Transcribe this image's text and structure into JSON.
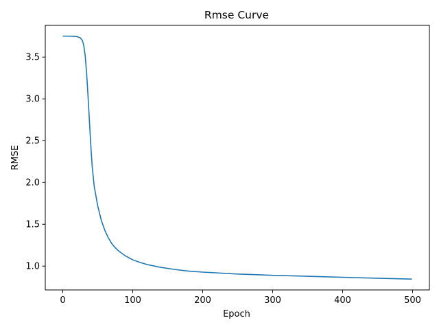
{
  "chart_data": {
    "type": "line",
    "title": "Rmse Curve",
    "xlabel": "Epoch",
    "ylabel": "RMSE",
    "xlim": [
      -25,
      524
    ],
    "ylim": [
      0.715,
      3.879
    ],
    "xticks": [
      0,
      100,
      200,
      300,
      400,
      500
    ],
    "xtick_labels": [
      "0",
      "100",
      "200",
      "300",
      "400",
      "500"
    ],
    "yticks": [
      1.0,
      1.5,
      2.0,
      2.5,
      3.0,
      3.5
    ],
    "ytick_labels": [
      "1.0",
      "1.5",
      "2.0",
      "2.5",
      "3.0",
      "3.5"
    ],
    "grid": false,
    "legend": null,
    "series": [
      {
        "color": "#1f77b4",
        "x": [
          0,
          10,
          20,
          25,
          28,
          30,
          32,
          34,
          36,
          38,
          40,
          42,
          45,
          50,
          55,
          60,
          65,
          70,
          75,
          80,
          90,
          100,
          110,
          120,
          140,
          160,
          180,
          200,
          250,
          300,
          350,
          400,
          450,
          499
        ],
        "y": [
          3.75,
          3.75,
          3.745,
          3.73,
          3.7,
          3.64,
          3.52,
          3.32,
          3.05,
          2.75,
          2.45,
          2.2,
          1.95,
          1.72,
          1.55,
          1.43,
          1.34,
          1.27,
          1.22,
          1.18,
          1.12,
          1.075,
          1.045,
          1.02,
          0.985,
          0.96,
          0.94,
          0.928,
          0.905,
          0.89,
          0.878,
          0.866,
          0.855,
          0.845
        ]
      }
    ]
  }
}
